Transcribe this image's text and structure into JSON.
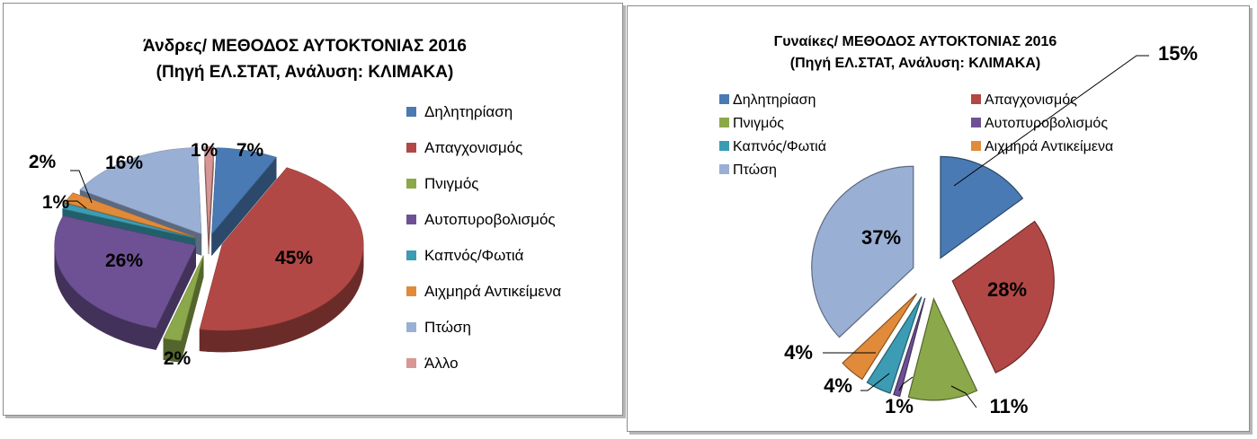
{
  "charts": {
    "men": {
      "title_line1": "Άνδρες/ ΜΕΘΟΔΟΣ ΑΥΤΟΚΤΟΝΙΑΣ 2016",
      "title_line2": "(Πηγή ΕΛ.ΣΤΑΤ, Ανάλυση: ΚΛΙΜΑΚΑ)"
    },
    "women": {
      "title_line1": "Γυναίκες/ ΜΕΘΟΔΟΣ ΑΥΤΟΚΤΟΝΙΑΣ 2016",
      "title_line2": "(Πηγή ΕΛ.ΣΤΑΤ, Ανάλυση: ΚΛΙΜΑΚΑ)"
    }
  },
  "chart_data": [
    {
      "type": "pie",
      "style": "3d-exploded",
      "title": "Άνδρες/ ΜΕΘΟΔΟΣ ΑΥΤΟΚΤΟΝΙΑΣ 2016 (Πηγή ΕΛ.ΣΤΑΤ, Ανάλυση: ΚΛΙΜΑΚΑ)",
      "legend_position": "right",
      "categories": [
        "Δηλητηρίαση",
        "Απαγχονισμός",
        "Πνιγμός",
        "Αυτοπυροβολισμός",
        "Καπνός/Φωτιά",
        "Αιχμηρά Αντικείμενα",
        "Πτώση",
        "Άλλο"
      ],
      "values": [
        7,
        45,
        2,
        26,
        1,
        2,
        16,
        1
      ],
      "labels": [
        "7%",
        "45%",
        "2%",
        "26%",
        "1%",
        "2%",
        "16%",
        "1%"
      ],
      "colors": [
        "#4a7ab3",
        "#b24845",
        "#8ba84a",
        "#6e5195",
        "#3b9cb3",
        "#e18b3a",
        "#9aafd4",
        "#d89795"
      ]
    },
    {
      "type": "pie",
      "style": "exploded",
      "title": "Γυναίκες/ ΜΕΘΟΔΟΣ ΑΥΤΟΚΤΟΝΙΑΣ 2016 (Πηγή ΕΛ.ΣΤΑΤ, Ανάλυση: ΚΛΙΜΑΚΑ)",
      "legend_position": "top",
      "categories": [
        "Δηλητηρίαση",
        "Απαγχονισμός",
        "Πνιγμός",
        "Αυτοπυροβολισμός",
        "Καπνός/Φωτιά",
        "Αιχμηρά Αντικείμενα",
        "Πτώση"
      ],
      "values": [
        15,
        28,
        11,
        1,
        4,
        4,
        37
      ],
      "labels": [
        "15%",
        "28%",
        "11%",
        "1%",
        "4%",
        "4%",
        "37%"
      ],
      "colors": [
        "#4a7ab3",
        "#b24845",
        "#8ba84a",
        "#6e5195",
        "#3b9cb3",
        "#e18b3a",
        "#9aafd4"
      ]
    }
  ]
}
